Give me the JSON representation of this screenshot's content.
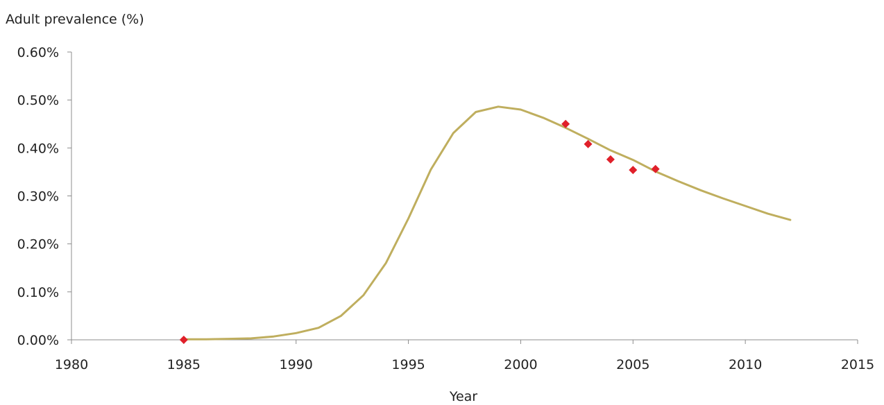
{
  "chart_data": {
    "type": "line",
    "title": "",
    "ylabel": "Adult prevalence (%)",
    "xlabel": "Year",
    "xlim": [
      1980,
      2015
    ],
    "ylim": [
      0,
      0.6
    ],
    "x_ticks": [
      1980,
      1985,
      1990,
      1995,
      2000,
      2005,
      2010,
      2015
    ],
    "x_tick_labels": [
      "1980",
      "1985",
      "1990",
      "1995",
      "2000",
      "2005",
      "2010",
      "2015"
    ],
    "y_ticks": [
      0,
      0.1,
      0.2,
      0.3,
      0.4,
      0.5,
      0.6
    ],
    "y_tick_labels": [
      "0.00%",
      "0.10%",
      "0.20%",
      "0.30%",
      "0.40%",
      "0.50%",
      "0.60%"
    ],
    "grid": false,
    "legend": "none",
    "series": [
      {
        "kind": "line",
        "color": "#bfae5e",
        "x": [
          1985,
          1986,
          1987,
          1988,
          1989,
          1990,
          1991,
          1992,
          1993,
          1994,
          1995,
          1996,
          1997,
          1998,
          1999,
          2000,
          2001,
          2002,
          2003,
          2004,
          2005,
          2006,
          2007,
          2008,
          2009,
          2010,
          2011,
          2012
        ],
        "y": [
          0.001,
          0.001,
          0.002,
          0.003,
          0.007,
          0.014,
          0.025,
          0.05,
          0.093,
          0.16,
          0.253,
          0.355,
          0.431,
          0.475,
          0.486,
          0.48,
          0.463,
          0.442,
          0.419,
          0.395,
          0.375,
          0.351,
          0.331,
          0.312,
          0.295,
          0.279,
          0.263,
          0.25
        ]
      },
      {
        "kind": "scatter",
        "marker": "diamond",
        "color": "#e0202a",
        "x": [
          1985,
          2002,
          2003,
          2004,
          2005,
          2006
        ],
        "y": [
          0.0,
          0.45,
          0.408,
          0.376,
          0.354,
          0.356
        ]
      }
    ]
  }
}
